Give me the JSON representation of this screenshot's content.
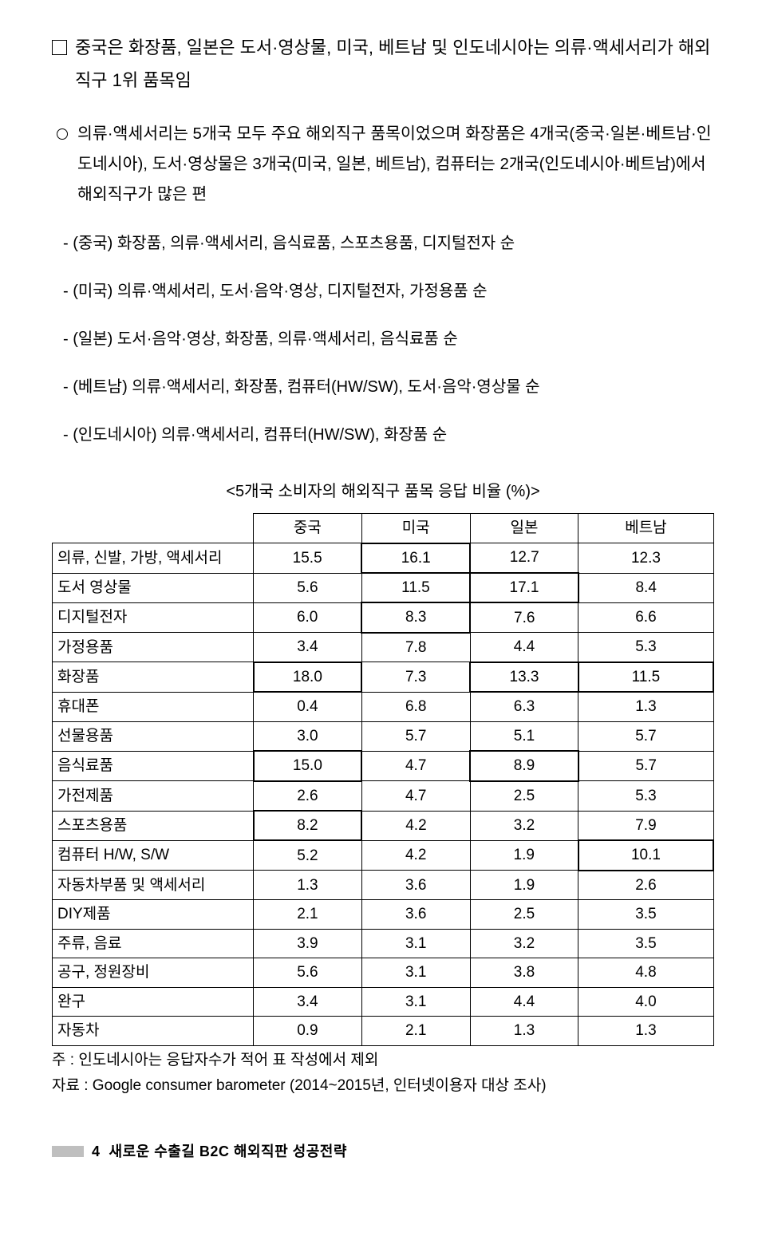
{
  "heading": "중국은 화장품, 일본은 도서·영상물, 미국, 베트남 및 인도네시아는 의류·액세서리가 해외직구 1위 품목임",
  "circle1": "의류·액세서리는 5개국 모두 주요 해외직구 품목이었으며 화장품은 4개국(중국·일본·베트남·인도네시아), 도서·영상물은 3개국(미국, 일본, 베트남), 컴퓨터는 2개국(인도네시아·베트남)에서 해외직구가 많은 편",
  "dash1": "- (중국) 화장품, 의류·액세서리, 음식료품, 스포츠용품, 디지털전자 순",
  "dash2": "- (미국) 의류·액세서리, 도서·음악·영상, 디지털전자, 가정용품 순",
  "dash3": "- (일본) 도서·음악·영상, 화장품, 의류·액세서리, 음식료품 순",
  "dash4": "- (베트남) 의류·액세서리, 화장품, 컴퓨터(HW/SW), 도서·음악·영상물 순",
  "dash5": "- (인도네시아) 의류·액세서리, 컴퓨터(HW/SW), 화장품 순",
  "table_title": "<5개국 소비자의 해외직구 품목 응답 비율 (%)>",
  "columns": [
    "",
    "중국",
    "미국",
    "일본",
    "베트남"
  ],
  "rows": [
    {
      "label": "의류, 신발, 가방, 액세서리",
      "v": [
        "15.5",
        "16.1",
        "12.7",
        "12.3"
      ],
      "hl": [
        0,
        1,
        0,
        0
      ]
    },
    {
      "label": "도서 영상물",
      "v": [
        "5.6",
        "11.5",
        "17.1",
        "8.4"
      ],
      "hl": [
        0,
        0,
        1,
        0
      ]
    },
    {
      "label": "디지털전자",
      "v": [
        "6.0",
        "8.3",
        "7.6",
        "6.6"
      ],
      "hl": [
        0,
        1,
        0,
        0
      ]
    },
    {
      "label": "가정용품",
      "v": [
        "3.4",
        "7.8",
        "4.4",
        "5.3"
      ],
      "hl": [
        0,
        0,
        0,
        0
      ]
    },
    {
      "label": "화장품",
      "v": [
        "18.0",
        "7.3",
        "13.3",
        "11.5"
      ],
      "hl": [
        1,
        0,
        1,
        1
      ]
    },
    {
      "label": "휴대폰",
      "v": [
        "0.4",
        "6.8",
        "6.3",
        "1.3"
      ],
      "hl": [
        0,
        0,
        0,
        0
      ]
    },
    {
      "label": "선물용품",
      "v": [
        "3.0",
        "5.7",
        "5.1",
        "5.7"
      ],
      "hl": [
        0,
        0,
        0,
        0
      ]
    },
    {
      "label": "음식료품",
      "v": [
        "15.0",
        "4.7",
        "8.9",
        "5.7"
      ],
      "hl": [
        1,
        0,
        1,
        0
      ]
    },
    {
      "label": "가전제품",
      "v": [
        "2.6",
        "4.7",
        "2.5",
        "5.3"
      ],
      "hl": [
        0,
        0,
        0,
        0
      ]
    },
    {
      "label": "스포츠용품",
      "v": [
        "8.2",
        "4.2",
        "3.2",
        "7.9"
      ],
      "hl": [
        1,
        0,
        0,
        0
      ]
    },
    {
      "label": "컴퓨터 H/W, S/W",
      "v": [
        "5.2",
        "4.2",
        "1.9",
        "10.1"
      ],
      "hl": [
        0,
        0,
        0,
        1
      ]
    },
    {
      "label": "자동차부품 및 액세서리",
      "v": [
        "1.3",
        "3.6",
        "1.9",
        "2.6"
      ],
      "hl": [
        0,
        0,
        0,
        0
      ]
    },
    {
      "label": "DIY제품",
      "v": [
        "2.1",
        "3.6",
        "2.5",
        "3.5"
      ],
      "hl": [
        0,
        0,
        0,
        0
      ]
    },
    {
      "label": "주류, 음료",
      "v": [
        "3.9",
        "3.1",
        "3.2",
        "3.5"
      ],
      "hl": [
        0,
        0,
        0,
        0
      ]
    },
    {
      "label": "공구, 정원장비",
      "v": [
        "5.6",
        "3.1",
        "3.8",
        "4.8"
      ],
      "hl": [
        0,
        0,
        0,
        0
      ]
    },
    {
      "label": "완구",
      "v": [
        "3.4",
        "3.1",
        "4.4",
        "4.0"
      ],
      "hl": [
        0,
        0,
        0,
        0
      ]
    },
    {
      "label": "자동차",
      "v": [
        "0.9",
        "2.1",
        "1.3",
        "1.3"
      ],
      "hl": [
        0,
        0,
        0,
        0
      ]
    }
  ],
  "note1": "주 : 인도네시아는 응답자수가 적어 표 작성에서 제외",
  "note2": "자료 : Google consumer barometer (2014~2015년, 인터넷이용자 대상 조사)",
  "footer_page": "4",
  "footer_title": "새로운 수출길 B2C 해외직판 성공전략"
}
